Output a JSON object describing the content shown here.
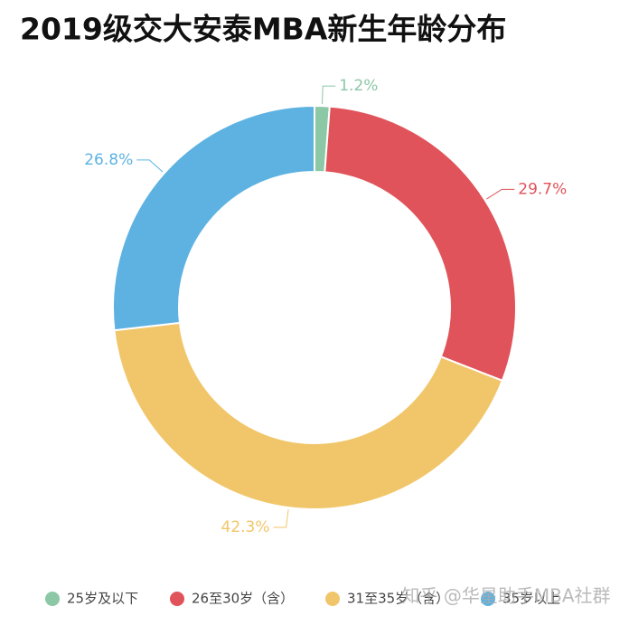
{
  "chart_data": {
    "type": "donut",
    "title": "2019级交大安泰MBA新生年龄分布",
    "categories": [
      "25岁及以下",
      "26至30岁（含）",
      "31至35岁（含）",
      "35岁以上"
    ],
    "values": [
      1.2,
      29.7,
      42.3,
      26.8
    ],
    "value_labels": [
      "1.2%",
      "29.7%",
      "42.3%",
      "26.8%"
    ],
    "colors": [
      "#8cc7a6",
      "#e0535a",
      "#f1c66a",
      "#5db2e2"
    ],
    "legend": "bottom",
    "watermark": "知乎 @华星助手MBA社群"
  }
}
